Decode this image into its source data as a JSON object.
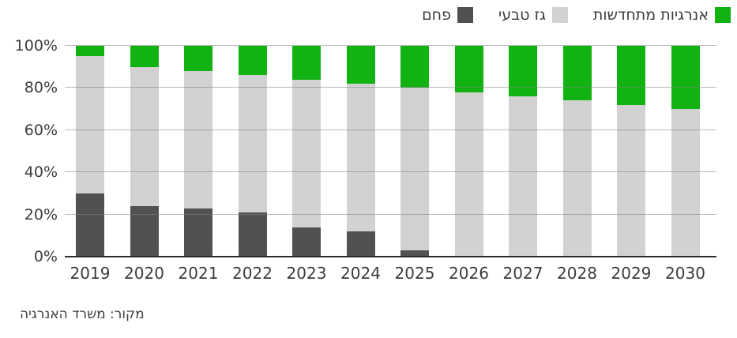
{
  "chart_data": {
    "type": "bar",
    "stacked": true,
    "title": "",
    "categories": [
      "2019",
      "2020",
      "2021",
      "2022",
      "2023",
      "2024",
      "2025",
      "2026",
      "2027",
      "2028",
      "2029",
      "2030"
    ],
    "series": [
      {
        "name": "פחם",
        "color": "#515151",
        "values": [
          30,
          24,
          23,
          21,
          14,
          12,
          3,
          0,
          0,
          0,
          0,
          0
        ]
      },
      {
        "name": "גז טבעי",
        "color": "#d2d2d2",
        "values": [
          65,
          66,
          65,
          65,
          70,
          70,
          77,
          78,
          76,
          74,
          72,
          70
        ]
      },
      {
        "name": "אנרגיות מתחדשות",
        "color": "#11b211",
        "values": [
          5,
          10,
          12,
          14,
          16,
          18,
          20,
          22,
          24,
          26,
          28,
          30
        ]
      }
    ],
    "unit": "%",
    "ylim": [
      0,
      100
    ],
    "yticks": [
      "0%",
      "20%",
      "40%",
      "60%",
      "80%",
      "100%"
    ],
    "grid": true,
    "legend_position": "top-right"
  },
  "source": {
    "text": "מקור: משרד האנרגיה"
  },
  "colors": {
    "coal": "#515151",
    "natural_gas": "#d2d2d2",
    "renewables": "#11b211",
    "gridline": "#a8a8a8",
    "axis_line": "#2f2f2f",
    "text": "#3c3c3c",
    "background": "#ffffff"
  }
}
